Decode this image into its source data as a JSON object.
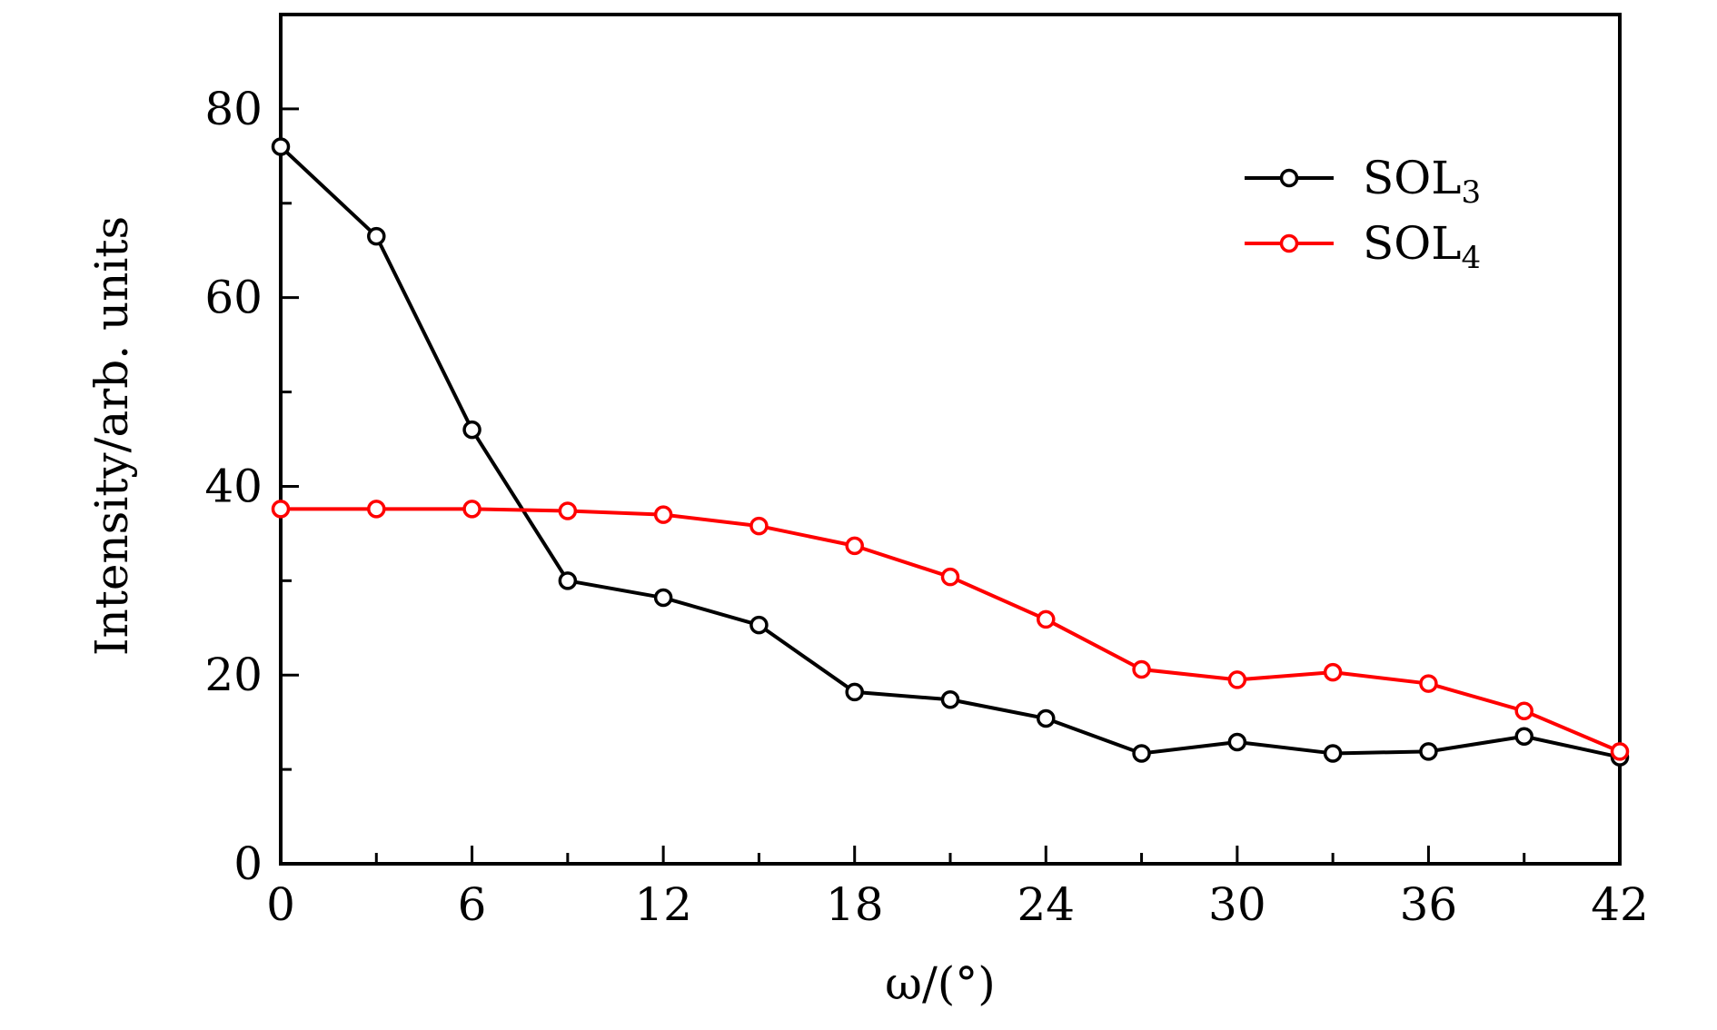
{
  "chart_data": {
    "type": "line",
    "title": "",
    "xlabel": "ω/(°)",
    "ylabel": "Intensity/arb. units",
    "xlim": [
      0,
      42
    ],
    "ylim": [
      0,
      90
    ],
    "x_ticks": [
      0,
      6,
      12,
      18,
      24,
      30,
      36,
      42
    ],
    "x_minor_ticks": [
      3,
      9,
      15,
      21,
      27,
      33,
      39
    ],
    "y_ticks": [
      0,
      20,
      40,
      60,
      80
    ],
    "y_minor_ticks": [
      10,
      30,
      50,
      70
    ],
    "grid": false,
    "legend_position": "top-right",
    "x": [
      0,
      3,
      6,
      9,
      12,
      15,
      18,
      21,
      24,
      27,
      30,
      33,
      36,
      39,
      42
    ],
    "series": [
      {
        "name": "SOL3",
        "name_base": "SOL",
        "name_sub": "3",
        "color": "#000000",
        "values": [
          76,
          66.5,
          46,
          30,
          28.2,
          25.3,
          18.2,
          17.4,
          15.4,
          11.7,
          12.9,
          11.7,
          11.9,
          13.5,
          11.3
        ]
      },
      {
        "name": "SOL4",
        "name_base": "SOL",
        "name_sub": "4",
        "color": "#ff0000",
        "values": [
          37.6,
          37.6,
          37.6,
          37.4,
          37.0,
          35.8,
          33.7,
          30.4,
          25.9,
          20.6,
          19.5,
          20.3,
          19.1,
          16.2,
          11.9
        ]
      }
    ]
  }
}
